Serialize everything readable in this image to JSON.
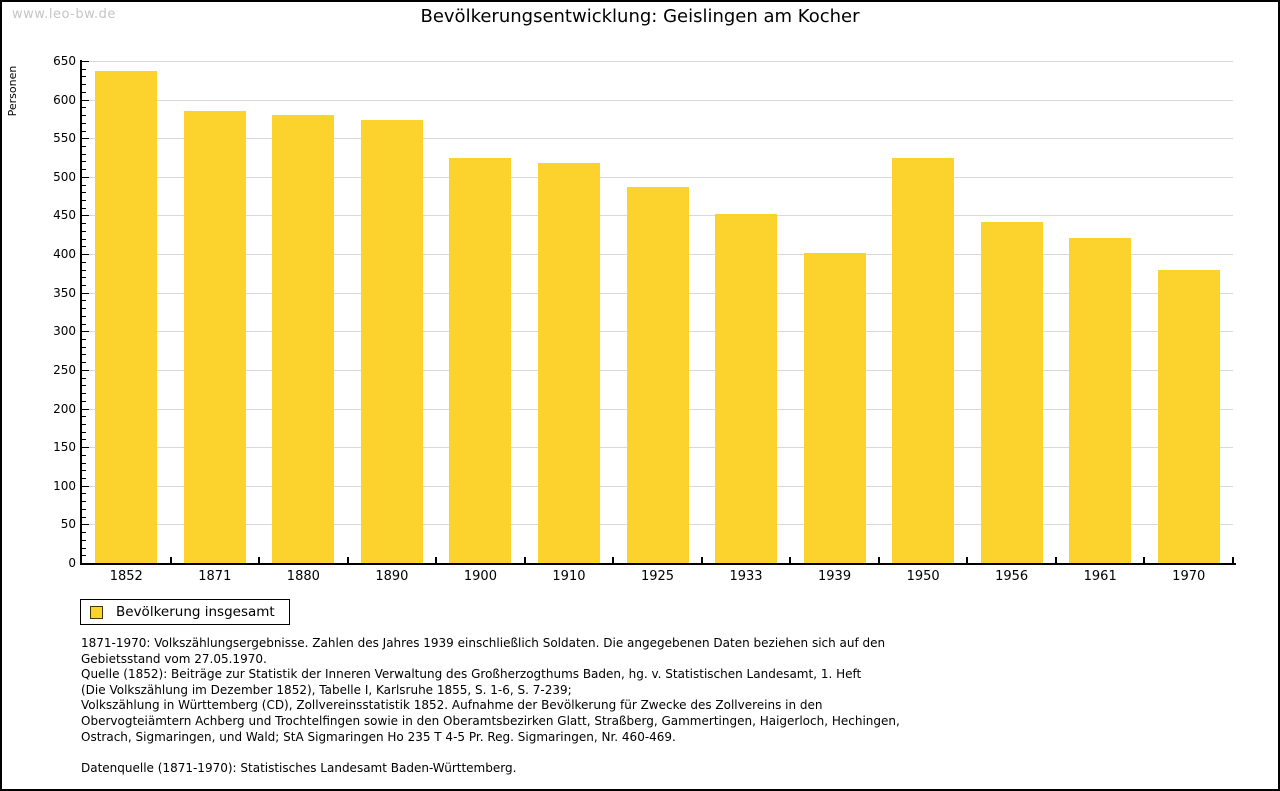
{
  "watermark": "www.leo-bw.de",
  "title": "Bevölkerungsentwicklung: Geislingen am Kocher",
  "legend": {
    "label": "Bevölkerung insgesamt"
  },
  "footer": {
    "lines": [
      "1871-1970: Volkszählungsergebnisse. Zahlen des Jahres 1939 einschließlich Soldaten. Die angegebenen Daten beziehen sich auf den",
      "Gebietsstand vom 27.05.1970.",
      "Quelle (1852): Beiträge zur Statistik der Inneren Verwaltung des Großherzogthums Baden, hg. v. Statistischen Landesamt, 1. Heft",
      "(Die Volkszählung im Dezember 1852), Tabelle I, Karlsruhe 1855, S. 1-6, S. 7-239;",
      "Volkszählung in Württemberg (CD), Zollvereinsstatistik 1852. Aufnahme der Bevölkerung für Zwecke des Zollvereins in den",
      "Obervogteiämtern Achberg und Trochtelfingen sowie in den Oberamtsbezirken Glatt, Straßberg, Gammertingen, Haigerloch, Hechingen,",
      "Ostrach, Sigmaringen, und Wald; StA Sigmaringen Ho 235 T 4-5 Pr. Reg. Sigmaringen, Nr. 460-469."
    ],
    "datasource": "Datenquelle (1871-1970): Statistisches Landesamt Baden-Württemberg."
  },
  "chart_data": {
    "type": "bar",
    "title": "Bevölkerungsentwicklung: Geislingen am Kocher",
    "series_name": "Bevölkerung insgesamt",
    "categories": [
      "1852",
      "1871",
      "1880",
      "1890",
      "1900",
      "1910",
      "1925",
      "1933",
      "1939",
      "1950",
      "1956",
      "1961",
      "1970"
    ],
    "values": [
      637,
      585,
      580,
      574,
      524,
      518,
      487,
      452,
      402,
      525,
      441,
      421,
      380
    ],
    "xlabel": "",
    "ylabel": "Personen",
    "ylim": [
      0,
      650
    ],
    "ytick_step": 50,
    "minor_tick_step": 10,
    "grid": true,
    "legend_position": "bottom-left",
    "colors": {
      "bar": "#fcd22d",
      "gridline": "#d9d9d9",
      "axis": "#000000",
      "watermark": "#c5c5c5",
      "legend_swatch_border": "#3c3c00"
    }
  }
}
